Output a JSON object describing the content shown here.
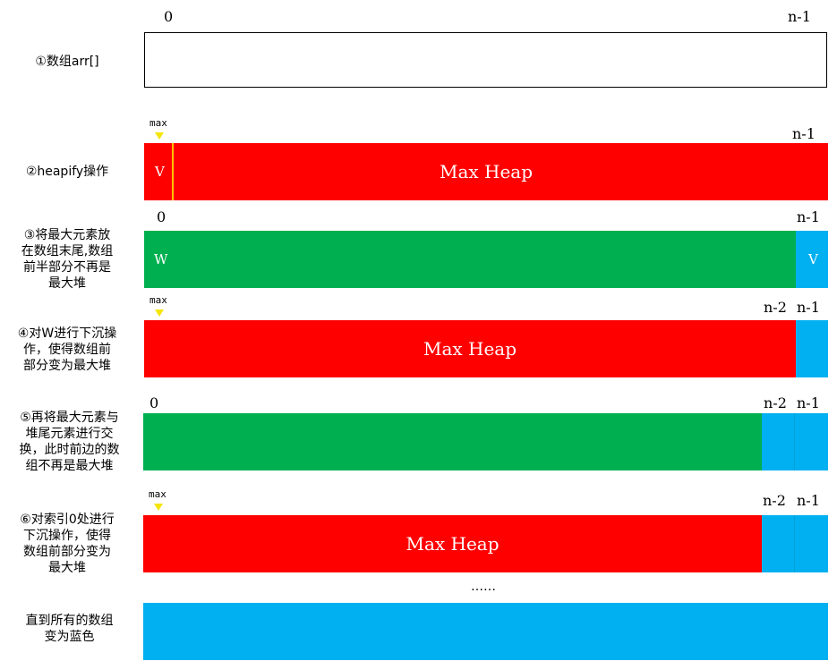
{
  "colors": {
    "red": "#ff0000",
    "green": "#00b050",
    "blue": "#00b0f0",
    "pointer": "#f5e50a",
    "v_divider": "#ffc000"
  },
  "steps": [
    "①数组arr[]",
    "②heapify操作",
    "③将最大元素放\n在数组末尾,数组\n前半部分不再是\n最大堆",
    "④对W进行下沉操\n作，使得数组前\n部分变为最大堆",
    "⑤再将最大元素与\n堆尾元素进行交\n换，此时前边的数\n组不再是最大堆",
    "⑥对索引0处进行\n下沉操作，使得\n数组前部分变为\n最大堆",
    "直到所有的数组\n变为蓝色"
  ],
  "indices": {
    "zero": "0",
    "zero_alt": "0",
    "n1": "n-1",
    "n2": "n-2"
  },
  "pointer_label": "max",
  "heap_label": "Max Heap",
  "cell_v": "V",
  "cell_w": "W",
  "ellipsis": "……"
}
